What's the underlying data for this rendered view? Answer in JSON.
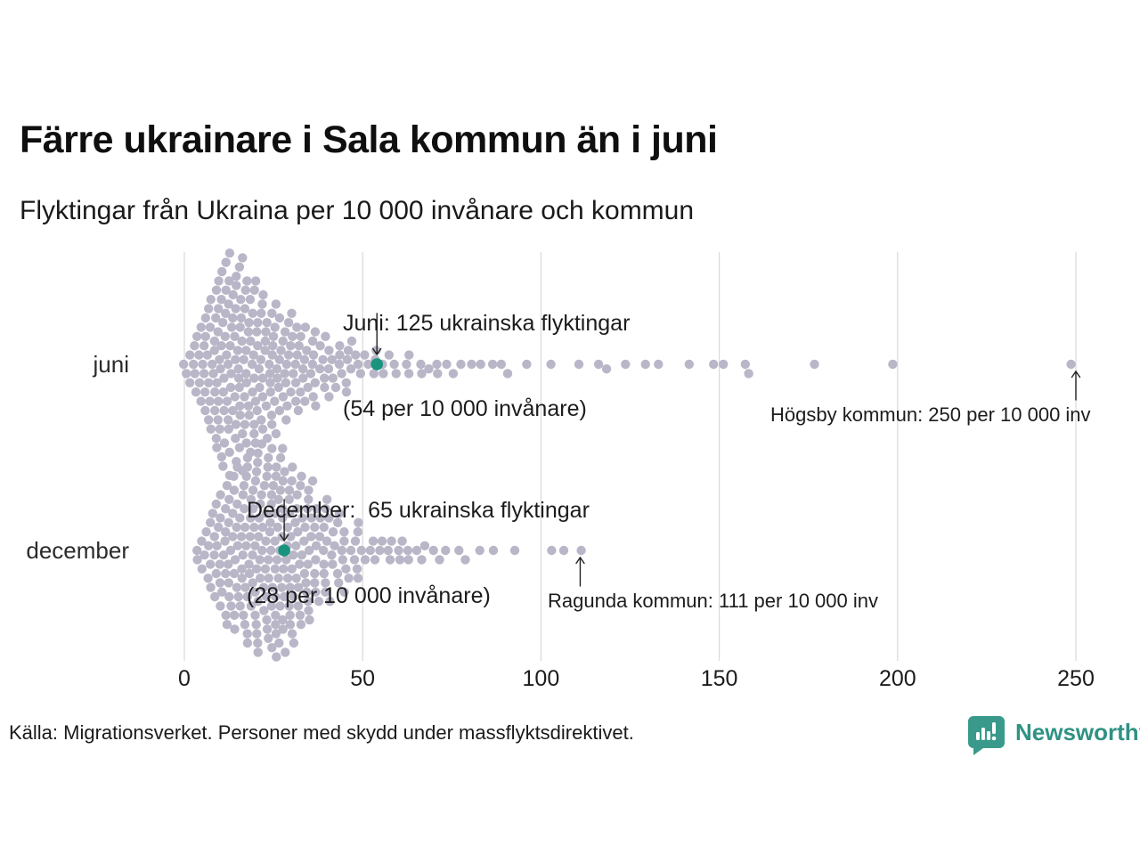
{
  "header": {
    "title": "Färre ukrainare i Sala kommun än i juni",
    "subtitle": "Flyktingar från Ukraina per 10 000 invånare och kommun"
  },
  "footer": {
    "source": "Källa: Migrationsverket. Personer med skydd under massflyktsdirektivet.",
    "brand": "Newsworthy"
  },
  "colors": {
    "dot": "#b9b6c8",
    "highlight": "#1a947f",
    "gridline": "#d9d9d9",
    "arrow": "#222222",
    "brand_teal": "#399a8b"
  },
  "chart_data": {
    "type": "beeswarm",
    "title": "Färre ukrainare i Sala kommun än i juni",
    "subtitle": "Flyktingar från Ukraina per 10 000 invånare och kommun",
    "unit": "flyktingar per 10 000 invånare och kommun",
    "x_axis": {
      "min": 0,
      "max": 250,
      "ticks": [
        0,
        50,
        100,
        150,
        200,
        250
      ],
      "grid": true
    },
    "legend_position": "none",
    "rows": [
      {
        "label": "juni",
        "highlight": {
          "value": 54,
          "municipality": "Sala",
          "refugees": 125
        },
        "max_point": {
          "value": 250,
          "municipality": "Högsby"
        },
        "value_counts": [
          [
            1,
            2
          ],
          [
            2,
            2
          ],
          [
            3,
            2
          ],
          [
            4,
            3
          ],
          [
            5,
            4
          ],
          [
            6,
            5
          ],
          [
            7,
            6
          ],
          [
            8,
            7
          ],
          [
            9,
            7
          ],
          [
            10,
            8
          ],
          [
            11,
            8
          ],
          [
            12,
            9
          ],
          [
            13,
            9
          ],
          [
            14,
            9
          ],
          [
            15,
            9
          ],
          [
            16,
            8
          ],
          [
            17,
            8
          ],
          [
            18,
            8
          ],
          [
            19,
            7
          ],
          [
            20,
            7
          ],
          [
            21,
            7
          ],
          [
            22,
            6
          ],
          [
            23,
            6
          ],
          [
            24,
            6
          ],
          [
            25,
            6
          ],
          [
            26,
            5
          ],
          [
            27,
            5
          ],
          [
            28,
            5
          ],
          [
            29,
            5
          ],
          [
            30,
            4
          ],
          [
            31,
            4
          ],
          [
            32,
            4
          ],
          [
            33,
            4
          ],
          [
            34,
            4
          ],
          [
            35,
            3
          ],
          [
            36,
            3
          ],
          [
            37,
            3
          ],
          [
            38,
            3
          ],
          [
            39,
            3
          ],
          [
            40,
            3
          ],
          [
            41,
            2
          ],
          [
            42,
            2
          ],
          [
            43,
            2
          ],
          [
            44,
            2
          ],
          [
            45,
            2
          ],
          [
            46,
            2
          ],
          [
            47,
            2
          ],
          [
            48,
            2
          ],
          [
            49,
            1
          ],
          [
            50,
            1
          ],
          [
            51,
            1
          ],
          [
            52,
            1
          ],
          [
            53,
            1
          ],
          [
            54,
            1
          ],
          [
            55,
            1
          ],
          [
            56,
            1
          ],
          [
            57,
            1
          ],
          [
            58,
            1
          ],
          [
            59,
            1
          ],
          [
            60,
            1
          ],
          [
            62,
            1
          ],
          [
            63,
            1
          ],
          [
            64,
            1
          ],
          [
            66,
            1
          ],
          [
            67,
            1
          ],
          [
            69,
            1
          ],
          [
            71,
            1
          ],
          [
            72,
            1
          ],
          [
            74,
            1
          ],
          [
            76,
            1
          ],
          [
            78,
            1
          ],
          [
            81,
            1
          ],
          [
            84,
            1
          ],
          [
            86,
            1
          ],
          [
            89,
            1
          ],
          [
            92,
            1
          ],
          [
            96,
            1
          ],
          [
            104,
            1
          ],
          [
            112,
            1
          ],
          [
            116,
            1
          ],
          [
            119,
            1
          ],
          [
            124,
            1
          ],
          [
            129,
            1
          ],
          [
            134,
            1
          ],
          [
            142,
            1
          ],
          [
            149,
            1
          ],
          [
            151,
            1
          ],
          [
            157,
            1
          ],
          [
            159,
            1
          ],
          [
            177,
            1
          ],
          [
            200,
            1
          ],
          [
            250,
            1
          ]
        ]
      },
      {
        "label": "december",
        "highlight": {
          "value": 28,
          "municipality": "Sala",
          "refugees": 65
        },
        "max_point": {
          "value": 111,
          "municipality": "Ragunda"
        },
        "value_counts": [
          [
            4,
            1
          ],
          [
            5,
            2
          ],
          [
            6,
            2
          ],
          [
            7,
            3
          ],
          [
            8,
            4
          ],
          [
            9,
            4
          ],
          [
            10,
            5
          ],
          [
            11,
            5
          ],
          [
            12,
            6
          ],
          [
            13,
            6
          ],
          [
            14,
            6
          ],
          [
            15,
            7
          ],
          [
            16,
            7
          ],
          [
            17,
            7
          ],
          [
            18,
            8
          ],
          [
            19,
            8
          ],
          [
            20,
            8
          ],
          [
            21,
            8
          ],
          [
            22,
            9
          ],
          [
            23,
            9
          ],
          [
            24,
            9
          ],
          [
            25,
            9
          ],
          [
            26,
            9
          ],
          [
            27,
            8
          ],
          [
            28,
            9
          ],
          [
            29,
            8
          ],
          [
            30,
            8
          ],
          [
            31,
            7
          ],
          [
            32,
            7
          ],
          [
            33,
            6
          ],
          [
            34,
            6
          ],
          [
            35,
            6
          ],
          [
            36,
            5
          ],
          [
            37,
            5
          ],
          [
            38,
            5
          ],
          [
            39,
            4
          ],
          [
            40,
            4
          ],
          [
            41,
            4
          ],
          [
            42,
            3
          ],
          [
            43,
            3
          ],
          [
            44,
            3
          ],
          [
            45,
            3
          ],
          [
            46,
            2
          ],
          [
            47,
            2
          ],
          [
            48,
            2
          ],
          [
            49,
            2
          ],
          [
            50,
            2
          ],
          [
            51,
            2
          ],
          [
            52,
            1
          ],
          [
            53,
            1
          ],
          [
            54,
            1
          ],
          [
            55,
            1
          ],
          [
            56,
            1
          ],
          [
            57,
            1
          ],
          [
            58,
            1
          ],
          [
            59,
            1
          ],
          [
            60,
            1
          ],
          [
            61,
            1
          ],
          [
            62,
            1
          ],
          [
            63,
            1
          ],
          [
            64,
            1
          ],
          [
            65,
            1
          ],
          [
            67,
            1
          ],
          [
            68,
            1
          ],
          [
            70,
            1
          ],
          [
            72,
            1
          ],
          [
            74,
            1
          ],
          [
            77,
            1
          ],
          [
            80,
            1
          ],
          [
            83,
            1
          ],
          [
            88,
            1
          ],
          [
            94,
            1
          ],
          [
            103,
            1
          ],
          [
            107,
            1
          ],
          [
            111,
            1
          ]
        ]
      }
    ],
    "annotations": [
      {
        "name": "juni-callout",
        "row": 0,
        "side": "above",
        "arrow_value": 54,
        "line1": "Juni: 125 ukrainska flyktingar",
        "line2": "(54 per 10 000 invånare)"
      },
      {
        "name": "hogsby-label",
        "row": 0,
        "side": "below",
        "arrow_value": 250,
        "text": "Högsby kommun: 250 per 10 000 inv"
      },
      {
        "name": "december-callout",
        "row": 1,
        "side": "above",
        "arrow_value": 28,
        "line1": "December:  65 ukrainska flyktingar",
        "line2": "(28 per 10 000 invånare)"
      },
      {
        "name": "ragunda-label",
        "row": 1,
        "side": "below",
        "arrow_value": 111,
        "text": "Ragunda kommun: 111 per 10 000 inv"
      }
    ]
  }
}
